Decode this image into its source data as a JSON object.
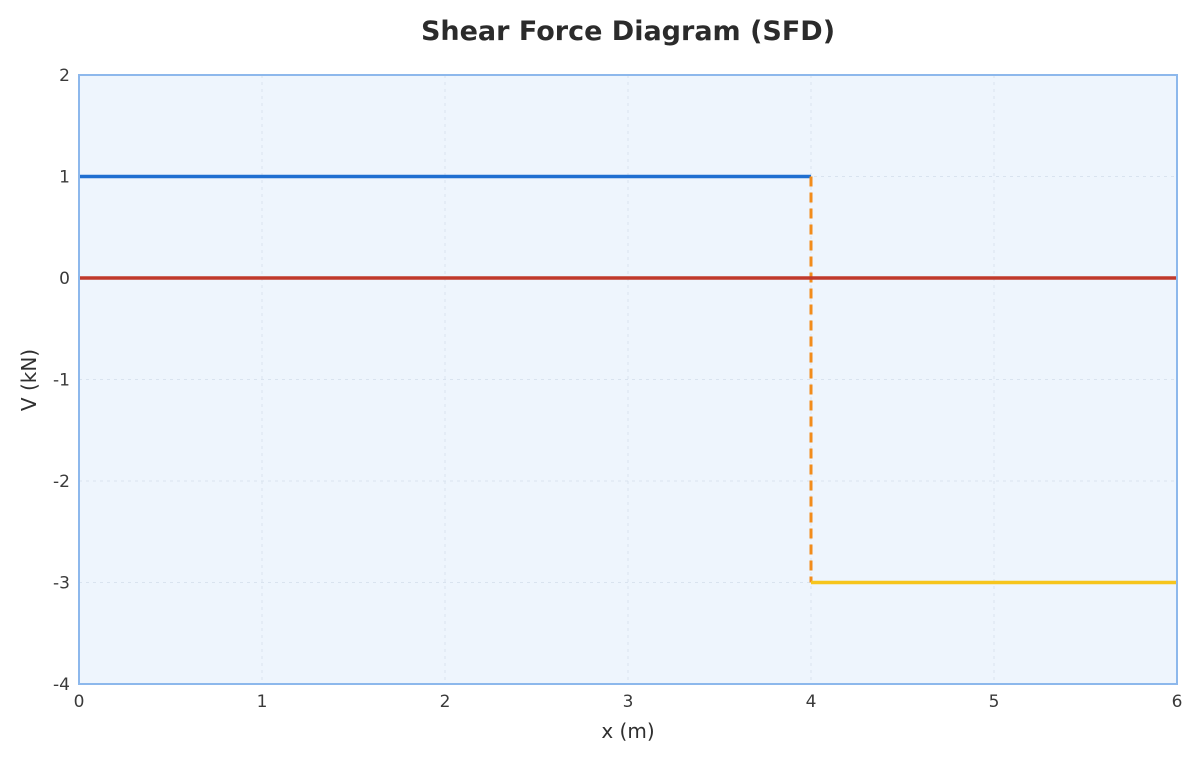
{
  "chart_data": {
    "type": "line",
    "title": "Shear Force Diagram (SFD)",
    "xlabel": "x (m)",
    "ylabel": "V (kN)",
    "xlim": [
      0,
      6
    ],
    "ylim": [
      -4,
      2
    ],
    "x_ticks": [
      0,
      1,
      2,
      3,
      4,
      5,
      6
    ],
    "y_ticks": [
      -4,
      -3,
      -2,
      -1,
      0,
      1,
      2
    ],
    "grid": true,
    "series": [
      {
        "x": [
          0,
          4
        ],
        "y": [
          1,
          1
        ],
        "color": "#1f6fd1",
        "style": "solid"
      },
      {
        "x": [
          4,
          4
        ],
        "y": [
          1,
          -3
        ],
        "color": "#f28c1b",
        "style": "dashed"
      },
      {
        "x": [
          4,
          6
        ],
        "y": [
          -3,
          -3
        ],
        "color": "#f6c51d",
        "style": "solid"
      },
      {
        "x": [
          0,
          6
        ],
        "y": [
          0,
          0
        ],
        "color": "#c0392b",
        "style": "solid"
      }
    ]
  },
  "colors": {
    "plot_background": "#eef5fd",
    "plot_border": "#8db8ec",
    "grid": "#d9e3ef"
  }
}
